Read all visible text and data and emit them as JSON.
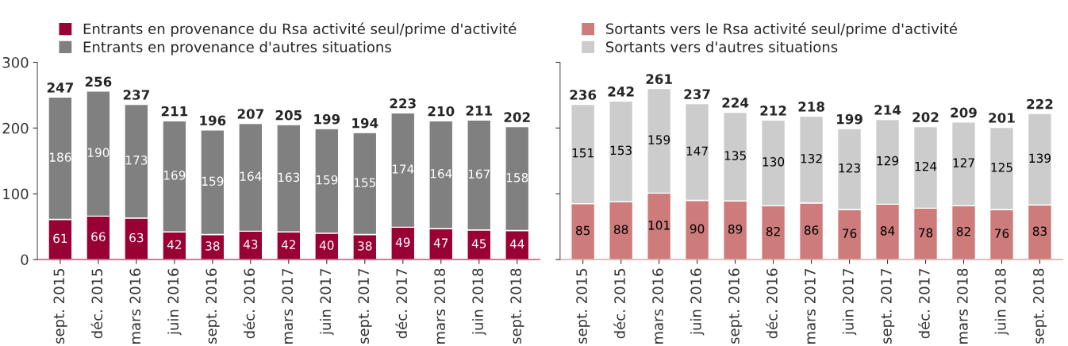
{
  "chart_data": [
    {
      "type": "bar",
      "stacked": true,
      "data_labels": true,
      "legend": "top",
      "grid": false,
      "categories": [
        "sept. 2015",
        "déc. 2015",
        "mars 2016",
        "juin 2016",
        "sept. 2016",
        "déc. 2016",
        "mars 2017",
        "juin 2017",
        "sept. 2017",
        "déc. 2017",
        "mars 2018",
        "juin 2018",
        "sept. 2018"
      ],
      "series": [
        {
          "name": "Entrants en provenance du Rsa activité seul/prime d'activité",
          "color": "#990033",
          "values": [
            61,
            66,
            63,
            42,
            38,
            43,
            42,
            40,
            38,
            49,
            47,
            45,
            44
          ]
        },
        {
          "name": "Entrants en provenance d'autres situations",
          "color": "#808080",
          "values": [
            186,
            190,
            173,
            169,
            159,
            164,
            163,
            159,
            155,
            174,
            164,
            167,
            158
          ]
        }
      ],
      "totals": [
        "247",
        "256",
        "237",
        "211",
        "196",
        "207",
        "205",
        "199",
        "194",
        "223",
        "210",
        "211",
        "202"
      ],
      "ylim": [
        0,
        300
      ],
      "yticks": [
        0,
        100,
        200,
        300
      ]
    },
    {
      "type": "bar",
      "stacked": true,
      "data_labels": true,
      "legend": "top",
      "grid": false,
      "tick_labels": "x",
      "categories": [
        "sept. 2015",
        "déc. 2015",
        "mars 2016",
        "juin 2016",
        "sept. 2016",
        "déc. 2016",
        "mars 2017",
        "juin 2017",
        "sept. 2017",
        "déc. 2017",
        "mars 2018",
        "juin 2018",
        "sept. 2018"
      ],
      "series": [
        {
          "name": "Sortants vers le Rsa activité seul/prime d'activité",
          "color": "#cd7b7b",
          "values": [
            85,
            88,
            101,
            90,
            89,
            82,
            86,
            76,
            84,
            78,
            82,
            76,
            83
          ]
        },
        {
          "name": "Sortants vers d'autres situations",
          "color": "#cccccc",
          "values": [
            151,
            153,
            159,
            147,
            135,
            130,
            132,
            123,
            129,
            124,
            127,
            125,
            139
          ]
        }
      ],
      "totals": [
        "236",
        "242",
        "261",
        "237",
        "224",
        "212",
        "218",
        "199",
        "214",
        "202",
        "209",
        "201",
        "222"
      ],
      "ylim": [
        0,
        300
      ],
      "yticks": [
        0,
        100,
        200,
        300
      ]
    }
  ]
}
